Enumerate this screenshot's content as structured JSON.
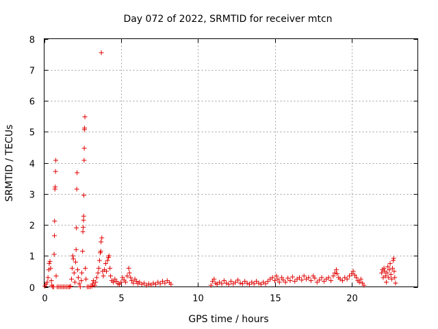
{
  "chart_data": {
    "type": "scatter",
    "title": "Day 072 of 2022, SRMTID for receiver mtcn",
    "xlabel": "GPS time / hours",
    "ylabel": "SRMTID / TECUs",
    "xlim": [
      0,
      24.3
    ],
    "ylim": [
      0,
      8
    ],
    "xticks": [
      0,
      5,
      10,
      15,
      20
    ],
    "yticks": [
      0,
      1,
      2,
      3,
      4,
      5,
      6,
      7,
      8
    ],
    "grid": true,
    "marker": "+",
    "color": "#e00000",
    "series": [
      {
        "name": "SRMTID",
        "points": [
          [
            0.05,
            0.02
          ],
          [
            0.12,
            0.08
          ],
          [
            0.2,
            0.15
          ],
          [
            0.25,
            0.3
          ],
          [
            0.3,
            0.55
          ],
          [
            0.33,
            0.75
          ],
          [
            0.38,
            0.82
          ],
          [
            0.42,
            0.6
          ],
          [
            0.47,
            0.2
          ],
          [
            0.5,
            0.05
          ],
          [
            0.55,
            0.0
          ],
          [
            0.62,
            0.0
          ],
          [
            0.65,
            1.05
          ],
          [
            0.67,
            1.65
          ],
          [
            0.68,
            2.12
          ],
          [
            0.7,
            3.15
          ],
          [
            0.72,
            3.22
          ],
          [
            0.74,
            3.72
          ],
          [
            0.76,
            4.08
          ],
          [
            0.78,
            0.35
          ],
          [
            0.85,
            0.0
          ],
          [
            0.95,
            0.0
          ],
          [
            1.05,
            0.0
          ],
          [
            1.15,
            0.0
          ],
          [
            1.25,
            0.0
          ],
          [
            1.35,
            0.0
          ],
          [
            1.45,
            0.0
          ],
          [
            1.55,
            0.0
          ],
          [
            1.65,
            0.0
          ],
          [
            1.72,
            0.02
          ],
          [
            1.78,
            0.25
          ],
          [
            1.82,
            0.6
          ],
          [
            1.86,
            1.0
          ],
          [
            1.9,
            0.9
          ],
          [
            1.95,
            0.45
          ],
          [
            2.0,
            0.15
          ],
          [
            2.05,
            0.8
          ],
          [
            2.08,
            1.2
          ],
          [
            2.1,
            1.9
          ],
          [
            2.12,
            3.15
          ],
          [
            2.14,
            3.68
          ],
          [
            2.18,
            0.55
          ],
          [
            2.22,
            0.3
          ],
          [
            2.28,
            0.1
          ],
          [
            2.35,
            0.0
          ],
          [
            2.42,
            0.2
          ],
          [
            2.45,
            0.45
          ],
          [
            2.5,
            1.15
          ],
          [
            2.52,
            1.78
          ],
          [
            2.54,
            1.92
          ],
          [
            2.56,
            2.15
          ],
          [
            2.57,
            2.28
          ],
          [
            2.58,
            2.95
          ],
          [
            2.6,
            4.08
          ],
          [
            2.61,
            4.47
          ],
          [
            2.62,
            5.07
          ],
          [
            2.63,
            5.12
          ],
          [
            2.65,
            5.48
          ],
          [
            2.68,
            0.6
          ],
          [
            2.72,
            0.25
          ],
          [
            2.8,
            0.0
          ],
          [
            2.9,
            0.0
          ],
          [
            3.0,
            0.0
          ],
          [
            3.1,
            0.02
          ],
          [
            3.15,
            0.1
          ],
          [
            3.2,
            0.2
          ],
          [
            3.28,
            0.05
          ],
          [
            3.35,
            0.15
          ],
          [
            3.42,
            0.3
          ],
          [
            3.5,
            0.45
          ],
          [
            3.55,
            0.6
          ],
          [
            3.6,
            0.85
          ],
          [
            3.65,
            1.1
          ],
          [
            3.68,
            1.15
          ],
          [
            3.7,
            1.45
          ],
          [
            3.72,
            7.55
          ],
          [
            3.75,
            1.58
          ],
          [
            3.8,
            0.5
          ],
          [
            3.85,
            0.35
          ],
          [
            3.92,
            0.55
          ],
          [
            4.0,
            0.75
          ],
          [
            4.05,
            0.5
          ],
          [
            4.12,
            0.85
          ],
          [
            4.18,
            0.95
          ],
          [
            4.22,
            1.0
          ],
          [
            4.28,
            0.6
          ],
          [
            4.32,
            0.35
          ],
          [
            4.4,
            0.2
          ],
          [
            4.5,
            0.15
          ],
          [
            4.6,
            0.25
          ],
          [
            4.7,
            0.18
          ],
          [
            4.8,
            0.1
          ],
          [
            4.9,
            0.08
          ],
          [
            5.0,
            0.15
          ],
          [
            5.1,
            0.3
          ],
          [
            5.2,
            0.22
          ],
          [
            5.3,
            0.15
          ],
          [
            5.4,
            0.35
          ],
          [
            5.5,
            0.6
          ],
          [
            5.55,
            0.45
          ],
          [
            5.62,
            0.3
          ],
          [
            5.7,
            0.2
          ],
          [
            5.8,
            0.12
          ],
          [
            5.9,
            0.25
          ],
          [
            6.0,
            0.18
          ],
          [
            6.1,
            0.1
          ],
          [
            6.2,
            0.15
          ],
          [
            6.35,
            0.08
          ],
          [
            6.5,
            0.12
          ],
          [
            6.65,
            0.05
          ],
          [
            6.8,
            0.1
          ],
          [
            6.95,
            0.06
          ],
          [
            7.1,
            0.12
          ],
          [
            7.25,
            0.08
          ],
          [
            7.4,
            0.15
          ],
          [
            7.55,
            0.1
          ],
          [
            7.7,
            0.18
          ],
          [
            7.85,
            0.12
          ],
          [
            8.0,
            0.2
          ],
          [
            8.15,
            0.14
          ],
          [
            8.25,
            0.08
          ],
          [
            10.85,
            0.05
          ],
          [
            10.95,
            0.18
          ],
          [
            11.05,
            0.25
          ],
          [
            11.15,
            0.12
          ],
          [
            11.25,
            0.08
          ],
          [
            11.4,
            0.15
          ],
          [
            11.55,
            0.1
          ],
          [
            11.7,
            0.2
          ],
          [
            11.85,
            0.12
          ],
          [
            12.0,
            0.08
          ],
          [
            12.15,
            0.18
          ],
          [
            12.3,
            0.1
          ],
          [
            12.45,
            0.15
          ],
          [
            12.6,
            0.22
          ],
          [
            12.75,
            0.12
          ],
          [
            12.9,
            0.1
          ],
          [
            13.05,
            0.18
          ],
          [
            13.2,
            0.12
          ],
          [
            13.35,
            0.08
          ],
          [
            13.5,
            0.15
          ],
          [
            13.65,
            0.1
          ],
          [
            13.8,
            0.18
          ],
          [
            13.95,
            0.12
          ],
          [
            14.1,
            0.08
          ],
          [
            14.25,
            0.15
          ],
          [
            14.4,
            0.1
          ],
          [
            14.55,
            0.18
          ],
          [
            14.7,
            0.25
          ],
          [
            14.85,
            0.3
          ],
          [
            15.0,
            0.2
          ],
          [
            15.1,
            0.35
          ],
          [
            15.2,
            0.25
          ],
          [
            15.3,
            0.15
          ],
          [
            15.45,
            0.3
          ],
          [
            15.55,
            0.22
          ],
          [
            15.7,
            0.15
          ],
          [
            15.85,
            0.28
          ],
          [
            16.0,
            0.2
          ],
          [
            16.15,
            0.32
          ],
          [
            16.3,
            0.18
          ],
          [
            16.45,
            0.25
          ],
          [
            16.6,
            0.3
          ],
          [
            16.75,
            0.22
          ],
          [
            16.9,
            0.35
          ],
          [
            17.05,
            0.25
          ],
          [
            17.2,
            0.3
          ],
          [
            17.35,
            0.2
          ],
          [
            17.5,
            0.35
          ],
          [
            17.6,
            0.28
          ],
          [
            17.75,
            0.15
          ],
          [
            17.9,
            0.22
          ],
          [
            18.05,
            0.3
          ],
          [
            18.2,
            0.18
          ],
          [
            18.35,
            0.25
          ],
          [
            18.5,
            0.3
          ],
          [
            18.65,
            0.2
          ],
          [
            18.8,
            0.35
          ],
          [
            18.9,
            0.45
          ],
          [
            19.0,
            0.55
          ],
          [
            19.05,
            0.42
          ],
          [
            19.15,
            0.3
          ],
          [
            19.25,
            0.25
          ],
          [
            19.4,
            0.2
          ],
          [
            19.55,
            0.3
          ],
          [
            19.7,
            0.25
          ],
          [
            19.85,
            0.35
          ],
          [
            20.0,
            0.42
          ],
          [
            20.1,
            0.5
          ],
          [
            20.2,
            0.38
          ],
          [
            20.3,
            0.3
          ],
          [
            20.4,
            0.2
          ],
          [
            20.5,
            0.15
          ],
          [
            20.6,
            0.25
          ],
          [
            20.7,
            0.12
          ],
          [
            20.8,
            0.05
          ],
          [
            21.95,
            0.45
          ],
          [
            22.0,
            0.55
          ],
          [
            22.05,
            0.3
          ],
          [
            22.1,
            0.6
          ],
          [
            22.15,
            0.5
          ],
          [
            22.2,
            0.35
          ],
          [
            22.25,
            0.15
          ],
          [
            22.3,
            0.45
          ],
          [
            22.35,
            0.65
          ],
          [
            22.4,
            0.3
          ],
          [
            22.45,
            0.55
          ],
          [
            22.5,
            0.75
          ],
          [
            22.55,
            0.4
          ],
          [
            22.6,
            0.25
          ],
          [
            22.65,
            0.6
          ],
          [
            22.7,
            0.85
          ],
          [
            22.73,
            0.92
          ],
          [
            22.76,
            0.5
          ],
          [
            22.8,
            0.3
          ],
          [
            22.85,
            0.12
          ]
        ]
      }
    ]
  }
}
